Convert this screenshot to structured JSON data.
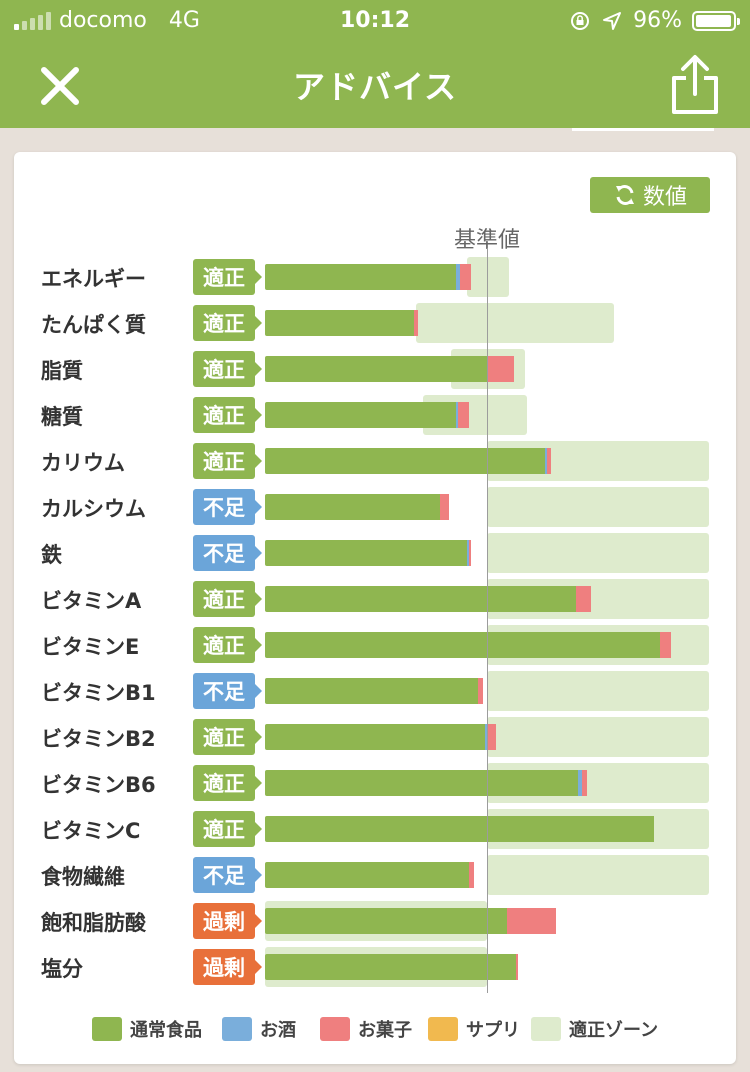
{
  "status_bar": {
    "carrier": "docomo",
    "network": "4G",
    "time": "10:12",
    "battery": "96%",
    "battery_level": 0.96
  },
  "nav": {
    "title": "アドバイス",
    "close_icon": "close-icon",
    "share_icon": "share-icon"
  },
  "toggle": {
    "label": "数値",
    "icon": "refresh-icon"
  },
  "reference_label": "基準値",
  "colors": {
    "normal": "#8fb650",
    "alcohol": "#7aaedb",
    "snacks": "#ef7f7f",
    "supplement": "#f1b94f",
    "zone": "#deebcd",
    "status_ok": "#8fb650",
    "status_low": "#6ba5d9",
    "status_high": "#e8703a"
  },
  "chart_data": {
    "type": "bar",
    "orientation": "horizontal",
    "stacked": true,
    "scale_note": "values are percent of the reference value (基準値 = 100)",
    "legend_placement": "bottom",
    "legend": [
      "通常食品",
      "お酒",
      "お菓子",
      "サプリ",
      "適正ゾーン"
    ],
    "rows": [
      {
        "name": "エネルギー",
        "status": "適正",
        "status_type": "ok",
        "normal": 86,
        "alcohol": 2,
        "snacks": 5,
        "supplement": 0,
        "zone": [
          91,
          110
        ]
      },
      {
        "name": "たんぱく質",
        "status": "適正",
        "status_type": "ok",
        "normal": 67,
        "alcohol": 0,
        "snacks": 2,
        "supplement": 0,
        "zone": [
          68,
          157
        ]
      },
      {
        "name": "脂質",
        "status": "適正",
        "status_type": "ok",
        "normal": 100,
        "alcohol": 0,
        "snacks": 12,
        "supplement": 0,
        "zone": [
          84,
          117
        ]
      },
      {
        "name": "糖質",
        "status": "適正",
        "status_type": "ok",
        "normal": 86,
        "alcohol": 1,
        "snacks": 5,
        "supplement": 0,
        "zone": [
          71,
          118
        ]
      },
      {
        "name": "カリウム",
        "status": "適正",
        "status_type": "ok",
        "normal": 126,
        "alcohol": 1,
        "snacks": 2,
        "supplement": 0,
        "zone": [
          100,
          200
        ]
      },
      {
        "name": "カルシウム",
        "status": "不足",
        "status_type": "low",
        "normal": 79,
        "alcohol": 0,
        "snacks": 4,
        "supplement": 0,
        "zone": [
          100,
          200
        ]
      },
      {
        "name": "鉄",
        "status": "不足",
        "status_type": "low",
        "normal": 91,
        "alcohol": 1,
        "snacks": 1,
        "supplement": 0,
        "zone": [
          100,
          200
        ]
      },
      {
        "name": "ビタミンA",
        "status": "適正",
        "status_type": "ok",
        "normal": 140,
        "alcohol": 0,
        "snacks": 7,
        "supplement": 0,
        "zone": [
          100,
          200
        ]
      },
      {
        "name": "ビタミンE",
        "status": "適正",
        "status_type": "ok",
        "normal": 178,
        "alcohol": 0,
        "snacks": 5,
        "supplement": 0,
        "zone": [
          100,
          200
        ]
      },
      {
        "name": "ビタミンB1",
        "status": "不足",
        "status_type": "low",
        "normal": 96,
        "alcohol": 0,
        "snacks": 2,
        "supplement": 0,
        "zone": [
          100,
          200
        ]
      },
      {
        "name": "ビタミンB2",
        "status": "適正",
        "status_type": "ok",
        "normal": 99,
        "alcohol": 1,
        "snacks": 4,
        "supplement": 0,
        "zone": [
          100,
          200
        ]
      },
      {
        "name": "ビタミンB6",
        "status": "適正",
        "status_type": "ok",
        "normal": 141,
        "alcohol": 2,
        "snacks": 2,
        "supplement": 0,
        "zone": [
          100,
          200
        ]
      },
      {
        "name": "ビタミンC",
        "status": "適正",
        "status_type": "ok",
        "normal": 175,
        "alcohol": 0,
        "snacks": 0,
        "supplement": 0,
        "zone": [
          100,
          200
        ]
      },
      {
        "name": "食物繊維",
        "status": "不足",
        "status_type": "low",
        "normal": 92,
        "alcohol": 0,
        "snacks": 2,
        "supplement": 0,
        "zone": [
          100,
          200
        ]
      },
      {
        "name": "飽和脂肪酸",
        "status": "過剰",
        "status_type": "high",
        "normal": 109,
        "alcohol": 0,
        "snacks": 22,
        "supplement": 0,
        "zone": [
          0,
          100
        ]
      },
      {
        "name": "塩分",
        "status": "過剰",
        "status_type": "high",
        "normal": 113,
        "alcohol": 0,
        "snacks": 1,
        "supplement": 0,
        "zone": [
          0,
          100
        ]
      }
    ]
  }
}
